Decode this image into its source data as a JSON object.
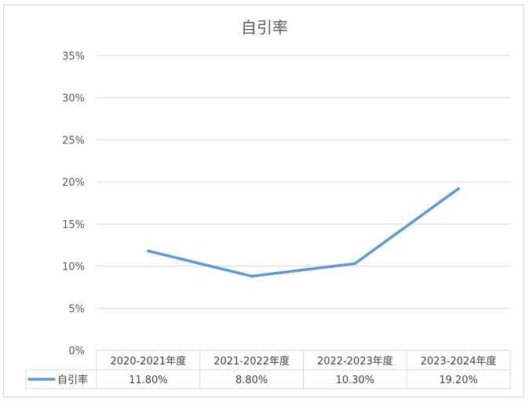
{
  "chart_data": {
    "type": "line",
    "title": "自引率",
    "categories": [
      "2020-2021年度",
      "2021-2022年度",
      "2022-2023年度",
      "2023-2024年度"
    ],
    "series": [
      {
        "name": "自引率",
        "values": [
          11.8,
          8.8,
          10.3,
          19.2
        ],
        "labels": [
          "11.80%",
          "8.80%",
          "10.30%",
          "19.20%"
        ],
        "color": "#5b9bd5"
      }
    ],
    "ylim": [
      0,
      35
    ],
    "yticks": [
      "0%",
      "5%",
      "10%",
      "15%",
      "20%",
      "25%",
      "30%",
      "35%"
    ],
    "grid": true,
    "legend": "data-table",
    "colors": {
      "grid": "#d9d9d9",
      "text": "#595959",
      "frame": "#d9d9d9"
    }
  }
}
